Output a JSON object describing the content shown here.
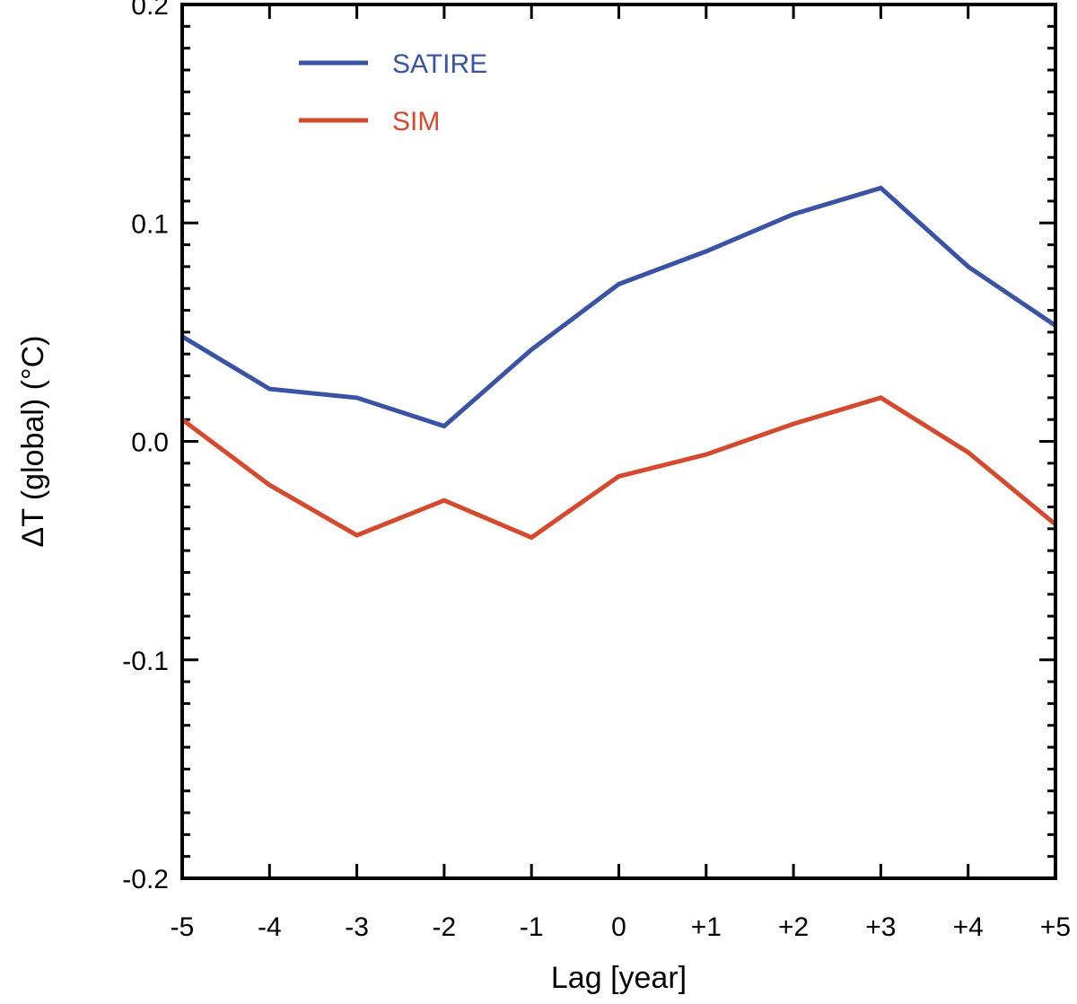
{
  "chart_data": {
    "type": "line",
    "xlabel": "Lag [year]",
    "ylabel": "ΔT (global) (°C)",
    "categories": [
      "-5",
      "-4",
      "-3",
      "-2",
      "-1",
      "0",
      "+1",
      "+2",
      "+3",
      "+4",
      "+5"
    ],
    "x": [
      -5,
      -4,
      -3,
      -2,
      -1,
      0,
      1,
      2,
      3,
      4,
      5
    ],
    "xlim": [
      -5,
      5
    ],
    "ylim": [
      -0.2,
      0.2
    ],
    "y_ticks": [
      -0.2,
      -0.1,
      0.0,
      0.1,
      0.2
    ],
    "y_tick_labels": [
      "-0.2",
      "-0.1",
      "0.0",
      "0.1",
      "0.2"
    ],
    "grid": false,
    "legend_position": "top-left",
    "series": [
      {
        "name": "SATIRE",
        "color": "#3a53a4",
        "values": [
          0.048,
          0.024,
          0.02,
          0.007,
          0.042,
          0.072,
          0.087,
          0.104,
          0.116,
          0.08,
          0.053
        ]
      },
      {
        "name": "SIM",
        "color": "#d34a2e",
        "values": [
          0.01,
          -0.02,
          -0.043,
          -0.027,
          -0.044,
          -0.016,
          -0.006,
          0.008,
          0.02,
          -0.005,
          -0.038
        ]
      }
    ]
  }
}
